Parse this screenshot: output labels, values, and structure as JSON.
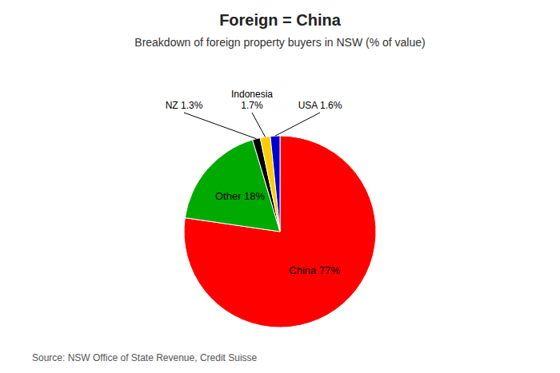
{
  "chart_data": {
    "type": "pie",
    "title": "Foreign = China",
    "subtitle": "Breakdown of foreign property buyers in NSW (% of value)",
    "source": "Source: NSW Office of State Revenue, Credit Suisse",
    "categories": [
      "China 77%",
      "Other 18%",
      "NZ 1.3%",
      "Indonesia\n1.7%",
      "USA 1.6%"
    ],
    "values": [
      77,
      18,
      1.3,
      1.7,
      1.6
    ],
    "colors": [
      "#ff0000",
      "#00aa00",
      "#000000",
      "#ffcc00",
      "#0000cc"
    ]
  }
}
